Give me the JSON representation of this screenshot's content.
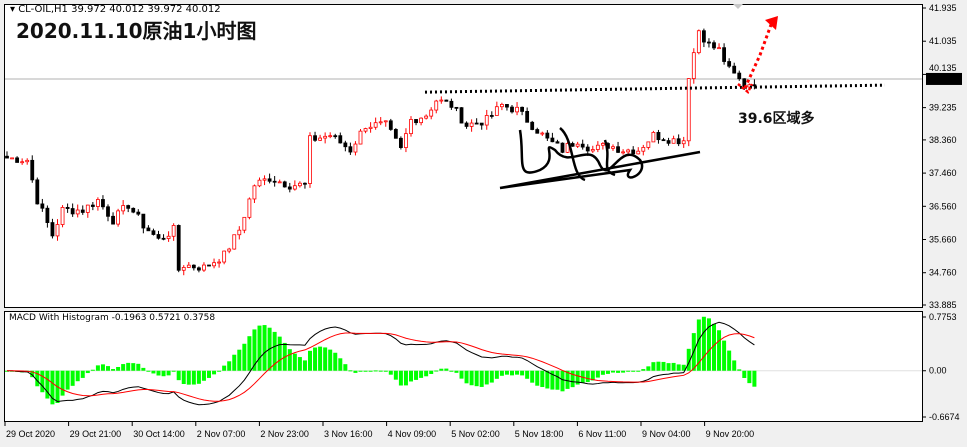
{
  "header": {
    "symbol_line": "CL-OIL,H1  39.972 40.012 39.972 40.012"
  },
  "title": "2020.11.10原油1小时图",
  "annotation": "39.6区域多",
  "macd_header": "MACD With Histogram -0.1963 0.5721 0.3758",
  "colors": {
    "bull": "#ff0000",
    "bear": "#000000",
    "macd_hist": "#00ff00",
    "macd_line": "#000000",
    "signal_line": "#ff0000",
    "arrow": "#ff0000",
    "current_price_bg": "#000000"
  },
  "chart_data": [
    {
      "type": "candlestick",
      "ylim": [
        33.885,
        41.935
      ],
      "y_ticks": [
        "41.935",
        "41.035",
        "40.135",
        "39.235",
        "38.360",
        "37.460",
        "36.560",
        "35.660",
        "34.760",
        "33.885"
      ],
      "current_price": "40.012",
      "x_ticks": [
        "29 Oct 2020",
        "29 Oct 21:00",
        "30 Oct 14:00",
        "2 Nov 07:00",
        "2 Nov 23:00",
        "3 Nov 16:00",
        "4 Nov 09:00",
        "5 Nov 02:00",
        "5 Nov 18:00",
        "6 Nov 11:00",
        "9 Nov 04:00",
        "9 Nov 20:00"
      ],
      "close_path": [
        [
          0,
          37.87
        ],
        [
          4,
          37.82
        ],
        [
          6,
          36.73
        ],
        [
          9,
          35.78
        ],
        [
          11,
          36.46
        ],
        [
          15,
          36.46
        ],
        [
          18,
          36.73
        ],
        [
          21,
          36.19
        ],
        [
          24,
          36.6
        ],
        [
          27,
          36.05
        ],
        [
          30,
          35.65
        ],
        [
          33,
          35.92
        ],
        [
          34,
          34.84
        ],
        [
          35,
          34.97
        ],
        [
          39,
          34.9
        ],
        [
          43,
          35.24
        ],
        [
          46,
          35.92
        ],
        [
          49,
          37.14
        ],
        [
          52,
          37.33
        ],
        [
          56,
          37.14
        ],
        [
          59,
          37.14
        ],
        [
          60,
          38.36
        ],
        [
          64,
          38.49
        ],
        [
          68,
          38.09
        ],
        [
          71,
          38.76
        ],
        [
          75,
          38.76
        ],
        [
          78,
          38.09
        ],
        [
          80,
          38.9
        ],
        [
          83,
          39.04
        ],
        [
          85,
          39.44
        ],
        [
          88,
          39.3
        ],
        [
          91,
          38.76
        ],
        [
          95,
          38.9
        ],
        [
          98,
          39.3
        ],
        [
          101,
          39.17
        ],
        [
          104,
          38.76
        ],
        [
          107,
          38.36
        ],
        [
          110,
          38.09
        ],
        [
          113,
          38.36
        ],
        [
          116,
          38.09
        ],
        [
          119,
          38.22
        ],
        [
          122,
          38.09
        ],
        [
          125,
          38.09
        ],
        [
          128,
          38.49
        ],
        [
          132,
          38.36
        ],
        [
          134,
          38.36
        ],
        [
          135,
          40.12
        ],
        [
          137,
          41.34
        ],
        [
          139,
          40.93
        ],
        [
          141,
          40.8
        ],
        [
          143,
          40.25
        ],
        [
          146,
          39.85
        ],
        [
          148,
          39.93
        ]
      ],
      "support_level": 39.6
    },
    {
      "type": "line",
      "title": "MACD With Histogram",
      "ylim": [
        -0.6674,
        0.7753
      ],
      "y_ticks": [
        "0.7753",
        "0.00",
        "-0.6674"
      ],
      "values_shown": {
        "macd": -0.1963,
        "signal": 0.5721,
        "histogram": 0.3758
      }
    }
  ]
}
